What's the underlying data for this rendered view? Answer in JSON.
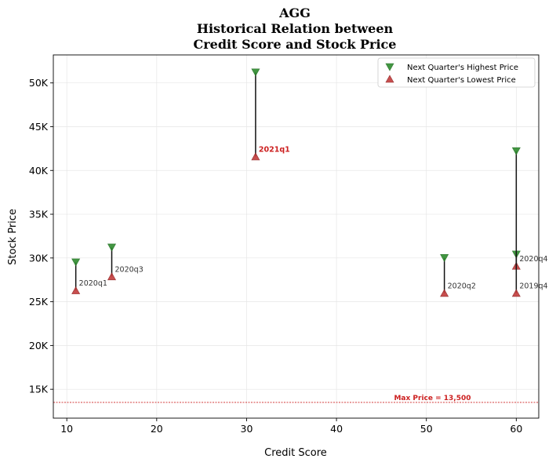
{
  "chart_data": {
    "type": "scatter",
    "title_lines": [
      "AGG",
      "Historical Relation between",
      "Credit Score and Stock Price"
    ],
    "xlabel": "Credit Score",
    "ylabel": "Stock Price",
    "xlim": [
      8.5,
      62.5
    ],
    "ylim": [
      11700,
      53200
    ],
    "xticks": [
      10,
      20,
      30,
      40,
      50,
      60
    ],
    "xtick_labels": [
      "10",
      "20",
      "30",
      "40",
      "50",
      "60"
    ],
    "yticks": [
      15000,
      20000,
      25000,
      30000,
      35000,
      40000,
      45000,
      50000
    ],
    "ytick_labels": [
      "15K",
      "20K",
      "25K",
      "30K",
      "35K",
      "40K",
      "45K",
      "50K"
    ],
    "grid": true,
    "legend_position": "top-right",
    "series": [
      {
        "name": "Next Quarter's Highest Price",
        "color": "#2e8b2e",
        "marker": "triangle-down"
      },
      {
        "name": "Next Quarter's Lowest Price",
        "color": "#c23b3b",
        "marker": "triangle-up"
      }
    ],
    "points": [
      {
        "label": "2020q1",
        "x": 11,
        "high": 29500,
        "low": 26300,
        "highlight": false
      },
      {
        "label": "2020q3",
        "x": 15,
        "high": 31200,
        "low": 27900,
        "highlight": false
      },
      {
        "label": "2021q1",
        "x": 31,
        "high": 51200,
        "low": 41600,
        "highlight": true
      },
      {
        "label": "2020q2",
        "x": 52,
        "high": 30000,
        "low": 26000,
        "highlight": false
      },
      {
        "label": "2020q4",
        "x": 60,
        "high": 30400,
        "low": 29100,
        "highlight": false
      },
      {
        "label": "2019q4",
        "x": 60,
        "high": 42200,
        "low": 26000,
        "highlight": false
      }
    ],
    "reference_line": {
      "value": 13500,
      "label": "Max Price = 13,500",
      "color": "#cc1f1f"
    }
  }
}
